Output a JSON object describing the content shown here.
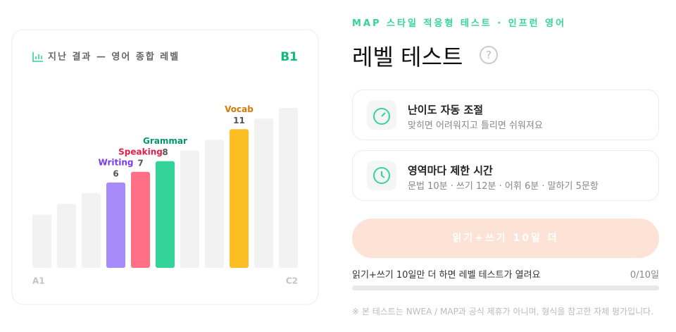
{
  "chart_data": {
    "type": "bar",
    "title": "지난 결과 — 영어 종합 레벨",
    "badge": "B1",
    "categories": [
      "A1",
      null,
      null,
      null,
      null,
      null,
      null,
      null,
      null,
      null,
      "C2"
    ],
    "values": [
      3,
      4,
      5,
      6,
      7,
      8,
      9,
      10,
      11,
      12,
      13
    ],
    "labels": [
      null,
      null,
      null,
      "Writing",
      "Speaking",
      "Grammar",
      null,
      null,
      "Vocab",
      null,
      null
    ],
    "colors": [
      "#f2f2f2",
      "#f2f2f2",
      "#f2f2f2",
      "#a78bfa",
      "#ff6f86",
      "#34d399",
      "#f2f2f2",
      "#f2f2f2",
      "#fbbf24",
      "#f2f2f2",
      "#f2f2f2"
    ],
    "label_colors": [
      null,
      null,
      null,
      "#7c3aed",
      "#e11d48",
      "#059669",
      null,
      null,
      "#d97706",
      null,
      null
    ],
    "ylim": [
      -2,
      13
    ]
  },
  "header": {
    "eyebrow": "MAP 스타일 적응형 테스트 · 인프런 영어",
    "title": "레벨 테스트",
    "help": "?"
  },
  "features": [
    {
      "title": "난이도 자동 조절",
      "desc": "맞히면 어려워지고 틀리면 쉬워져요"
    },
    {
      "title": "영역마다 제한 시간",
      "desc": "문법 10분 · 쓰기 12분 · 어휘 6분 · 말하기 5문항"
    }
  ],
  "button": {
    "label": "읽기+쓰기 10일 더"
  },
  "progress": {
    "text": "읽기+쓰기 10일만 더 하면 레벨 테스트가 열려요",
    "count": "0/10일"
  },
  "footnote": "※ 본 테스트는 NWEA / MAP과 공식 제휴가 아니며, 형식을 참고한 자체 평가입니다."
}
